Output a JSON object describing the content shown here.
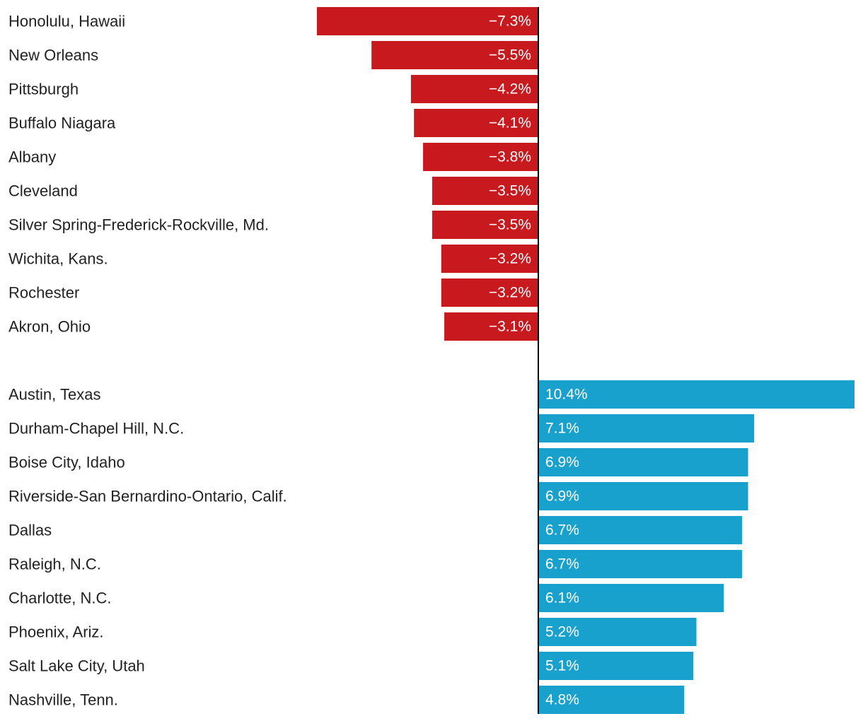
{
  "chart_data": {
    "type": "bar",
    "orientation": "horizontal",
    "colors": {
      "negative": "#c8191e",
      "positive": "#18a1cd",
      "axis": "#000000",
      "text": "#222222",
      "value_text": "#ffffff"
    },
    "groups": [
      {
        "name": "decline",
        "categories": [
          "Honolulu, Hawaii",
          "New Orleans",
          "Pittsburgh",
          "Buffalo Niagara",
          "Albany",
          "Cleveland",
          "Silver Spring-Frederick-Rockville, Md.",
          "Wichita, Kans.",
          "Rochester",
          "Akron, Ohio"
        ],
        "values": [
          -7.3,
          -5.5,
          -4.2,
          -4.1,
          -3.8,
          -3.5,
          -3.5,
          -3.2,
          -3.2,
          -3.1
        ],
        "labels": [
          "−7.3%",
          "−5.5%",
          "−4.2%",
          "−4.1%",
          "−3.8%",
          "−3.5%",
          "−3.5%",
          "−3.2%",
          "−3.2%",
          "−3.1%"
        ]
      },
      {
        "name": "growth",
        "categories": [
          "Austin, Texas",
          "Durham-Chapel Hill, N.C.",
          "Boise City, Idaho",
          "Riverside-San Bernardino-Ontario, Calif.",
          "Dallas",
          "Raleigh, N.C.",
          "Charlotte, N.C.",
          "Phoenix, Ariz.",
          "Salt Lake City, Utah",
          "Nashville, Tenn."
        ],
        "values": [
          10.4,
          7.1,
          6.9,
          6.9,
          6.7,
          6.7,
          6.1,
          5.2,
          5.1,
          4.8
        ],
        "labels": [
          "10.4%",
          "7.1%",
          "6.9%",
          "6.9%",
          "6.7%",
          "6.7%",
          "6.1%",
          "5.2%",
          "5.1%",
          "4.8%"
        ]
      }
    ],
    "title": "",
    "xlabel": "",
    "ylabel": "",
    "xlim": [
      -7.3,
      10.4
    ],
    "grid": false,
    "legend": "none"
  }
}
